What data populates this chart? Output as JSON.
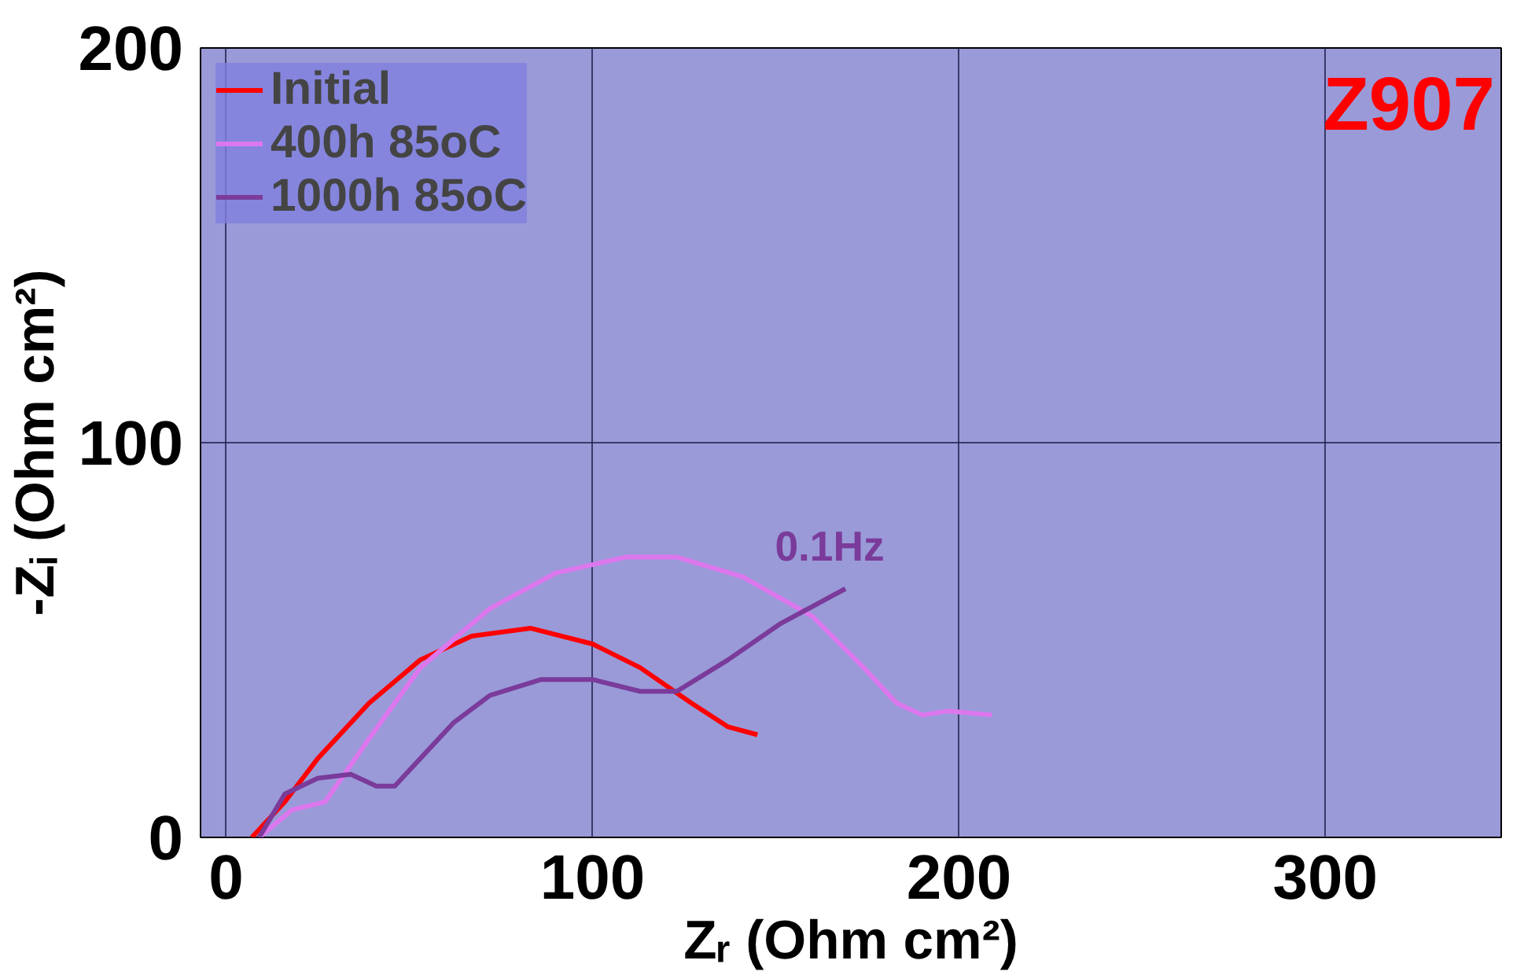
{
  "chart_data": {
    "type": "line",
    "xlabel": "Zᵣ (Ohm cm²)",
    "ylabel": "-Zᵢ (Ohm cm²)",
    "xlim": [
      -7,
      348
    ],
    "ylim": [
      0,
      200
    ],
    "xticks": [
      0,
      100,
      200,
      300
    ],
    "yticks": [
      0,
      100,
      200
    ],
    "grid": true,
    "legend": "top left",
    "series": [
      {
        "name": "Initial",
        "color": "#ff0000",
        "x": [
          7,
          16,
          25,
          39,
          53,
          67,
          83,
          100,
          113,
          127,
          137,
          145
        ],
        "values": [
          0,
          9,
          20,
          34,
          45,
          51,
          53,
          49,
          43,
          34,
          28,
          26
        ]
      },
      {
        "name": "400h 85oC",
        "color": "#dd77ee",
        "x": [
          9,
          18,
          27,
          39,
          53,
          72,
          90,
          109,
          123,
          141,
          160,
          174,
          183,
          190,
          197,
          209
        ],
        "values": [
          0,
          7,
          9,
          25,
          43,
          58,
          67,
          71,
          71,
          66,
          56,
          43,
          34,
          31,
          32,
          31
        ]
      },
      {
        "name": "1000h 85oC",
        "color": "#7a3b9a",
        "x": [
          9,
          16,
          25,
          34,
          41,
          46,
          53,
          62,
          72,
          86,
          100,
          113,
          123,
          137,
          151,
          169
        ],
        "values": [
          0,
          11,
          15,
          16,
          13,
          13,
          20,
          29,
          36,
          40,
          40,
          37,
          37,
          45,
          54,
          63
        ]
      }
    ],
    "annotations": [
      {
        "text": "0.1Hz",
        "x": 169,
        "y": 63
      },
      "Z907"
    ]
  }
}
